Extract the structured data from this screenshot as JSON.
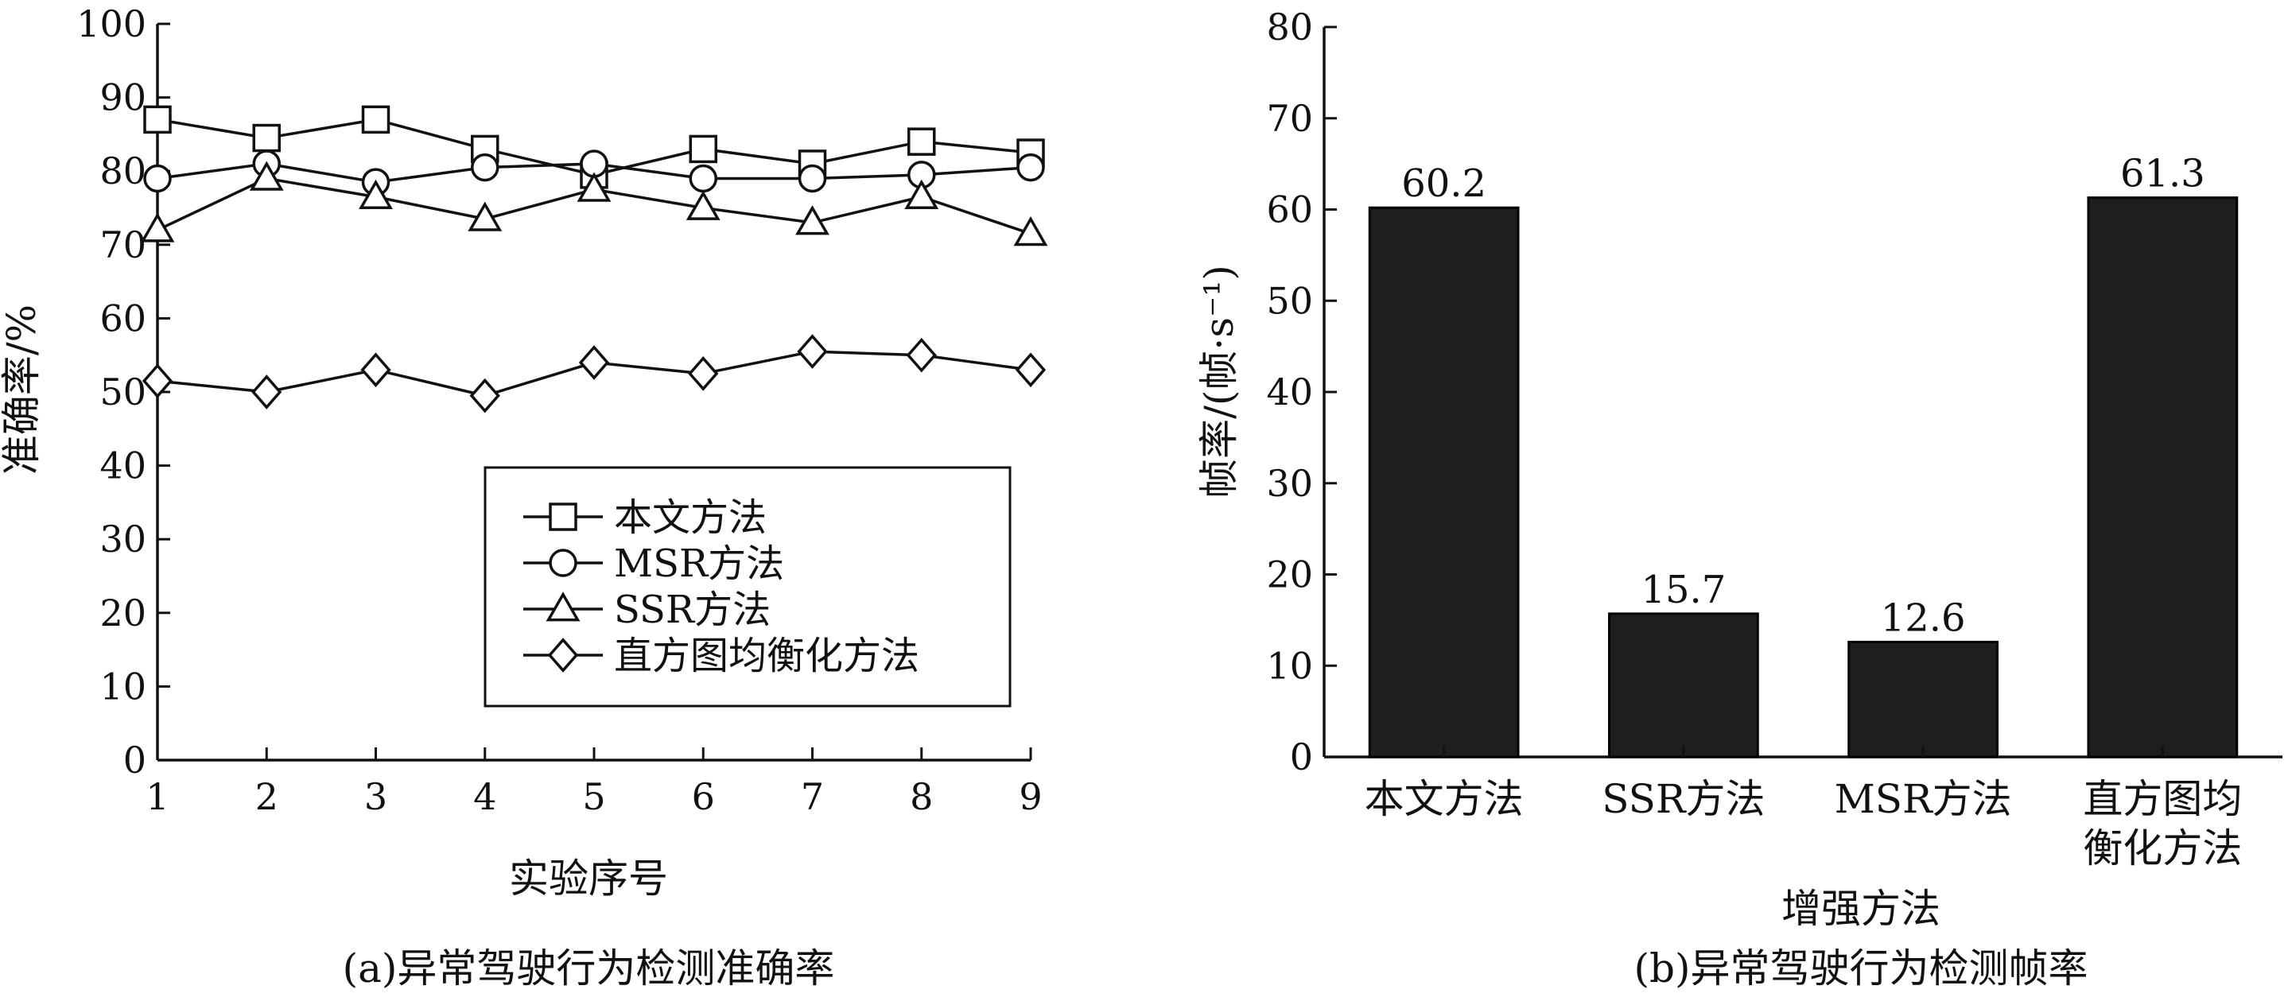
{
  "figure": {
    "caption_a": "(a)异常驾驶行为检测准确率",
    "caption_b": "(b)异常驾驶行为检测帧率"
  },
  "chart_data": [
    {
      "type": "line",
      "title": "",
      "xlabel": "实验序号",
      "ylabel": "准确率/%",
      "x": [
        1,
        2,
        3,
        4,
        5,
        6,
        7,
        8,
        9
      ],
      "xlim": [
        1,
        9
      ],
      "ylim": [
        0,
        100
      ],
      "yticks": [
        0,
        10,
        20,
        30,
        40,
        50,
        60,
        70,
        80,
        90,
        100
      ],
      "grid": false,
      "legend_position": "lower-right",
      "series": [
        {
          "name": "本文方法",
          "marker": "square",
          "values": [
            87.0,
            84.5,
            87.0,
            83.0,
            79.5,
            83.0,
            81.0,
            84.0,
            82.5
          ]
        },
        {
          "name": "MSR方法",
          "marker": "circle",
          "values": [
            79.0,
            81.0,
            78.5,
            80.5,
            81.0,
            79.0,
            79.0,
            79.5,
            80.5
          ]
        },
        {
          "name": "SSR方法",
          "marker": "triangle",
          "values": [
            72.0,
            79.0,
            76.5,
            73.5,
            77.5,
            75.0,
            73.0,
            76.5,
            71.5
          ]
        },
        {
          "name": "直方图均衡化方法",
          "marker": "diamond",
          "values": [
            51.5,
            50.0,
            53.0,
            49.5,
            54.0,
            52.5,
            55.5,
            55.0,
            53.0
          ]
        }
      ]
    },
    {
      "type": "bar",
      "title": "",
      "xlabel": "增强方法",
      "ylabel": "帧率/(帧·s⁻¹)",
      "ylim": [
        0,
        80
      ],
      "yticks": [
        0,
        10,
        20,
        30,
        40,
        50,
        60,
        70,
        80
      ],
      "grid": false,
      "categories": [
        "本文方法",
        "SSR方法",
        "MSR方法",
        "直方图均衡化方法"
      ],
      "category_lines": [
        [
          "本文方法"
        ],
        [
          "SSR方法"
        ],
        [
          "MSR方法"
        ],
        [
          "直方图均",
          "衡化方法"
        ]
      ],
      "values": [
        60.2,
        15.7,
        12.6,
        61.3
      ],
      "value_labels": [
        "60.2",
        "15.7",
        "12.6",
        "61.3"
      ],
      "bar_color": "#1e1e1e"
    }
  ]
}
